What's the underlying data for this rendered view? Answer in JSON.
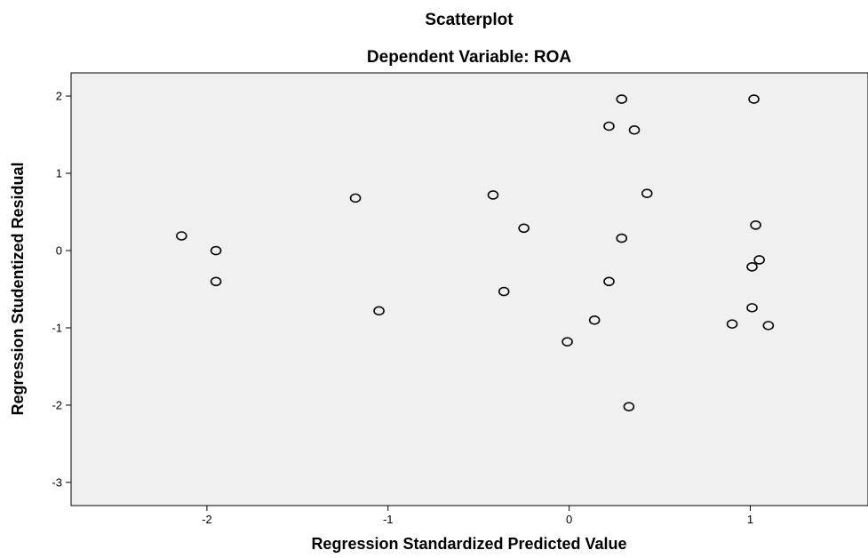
{
  "chart_data": {
    "type": "scatter",
    "title": "Scatterplot",
    "subtitle": "Dependent Variable: ROA",
    "xlabel": "Regression Standardized Predicted Value",
    "ylabel": "Regression Studentized Residual",
    "xlim": [
      -2.75,
      1.65
    ],
    "ylim": [
      -3.3,
      2.3
    ],
    "x_ticks": [
      -2,
      -1,
      0,
      1
    ],
    "y_ticks": [
      2,
      1,
      0,
      -1,
      -2,
      -3
    ],
    "x_tick_labels": [
      "-2",
      "-1",
      "0",
      "1"
    ],
    "y_tick_labels": [
      "2",
      "1",
      "0",
      "-1",
      "-2",
      "-3"
    ],
    "grid": false,
    "legend": "none",
    "marker": "hollow-circle",
    "points": [
      {
        "x": -2.14,
        "y": 0.19
      },
      {
        "x": -1.95,
        "y": 0.0
      },
      {
        "x": -1.95,
        "y": -0.4
      },
      {
        "x": -1.18,
        "y": 0.68
      },
      {
        "x": -1.05,
        "y": -0.78
      },
      {
        "x": -0.42,
        "y": 0.72
      },
      {
        "x": -0.36,
        "y": -0.53
      },
      {
        "x": -0.25,
        "y": 0.29
      },
      {
        "x": -0.01,
        "y": -1.18
      },
      {
        "x": 0.14,
        "y": -0.9
      },
      {
        "x": 0.22,
        "y": 1.61
      },
      {
        "x": 0.22,
        "y": -0.4
      },
      {
        "x": 0.29,
        "y": 1.96
      },
      {
        "x": 0.29,
        "y": 0.16
      },
      {
        "x": 0.33,
        "y": -2.02
      },
      {
        "x": 0.36,
        "y": 1.56
      },
      {
        "x": 0.43,
        "y": 0.74
      },
      {
        "x": 0.9,
        "y": -0.95
      },
      {
        "x": 1.01,
        "y": -0.74
      },
      {
        "x": 1.01,
        "y": -0.21
      },
      {
        "x": 1.02,
        "y": 1.96
      },
      {
        "x": 1.03,
        "y": 0.33
      },
      {
        "x": 1.05,
        "y": -0.12
      },
      {
        "x": 1.1,
        "y": -0.97
      }
    ]
  }
}
